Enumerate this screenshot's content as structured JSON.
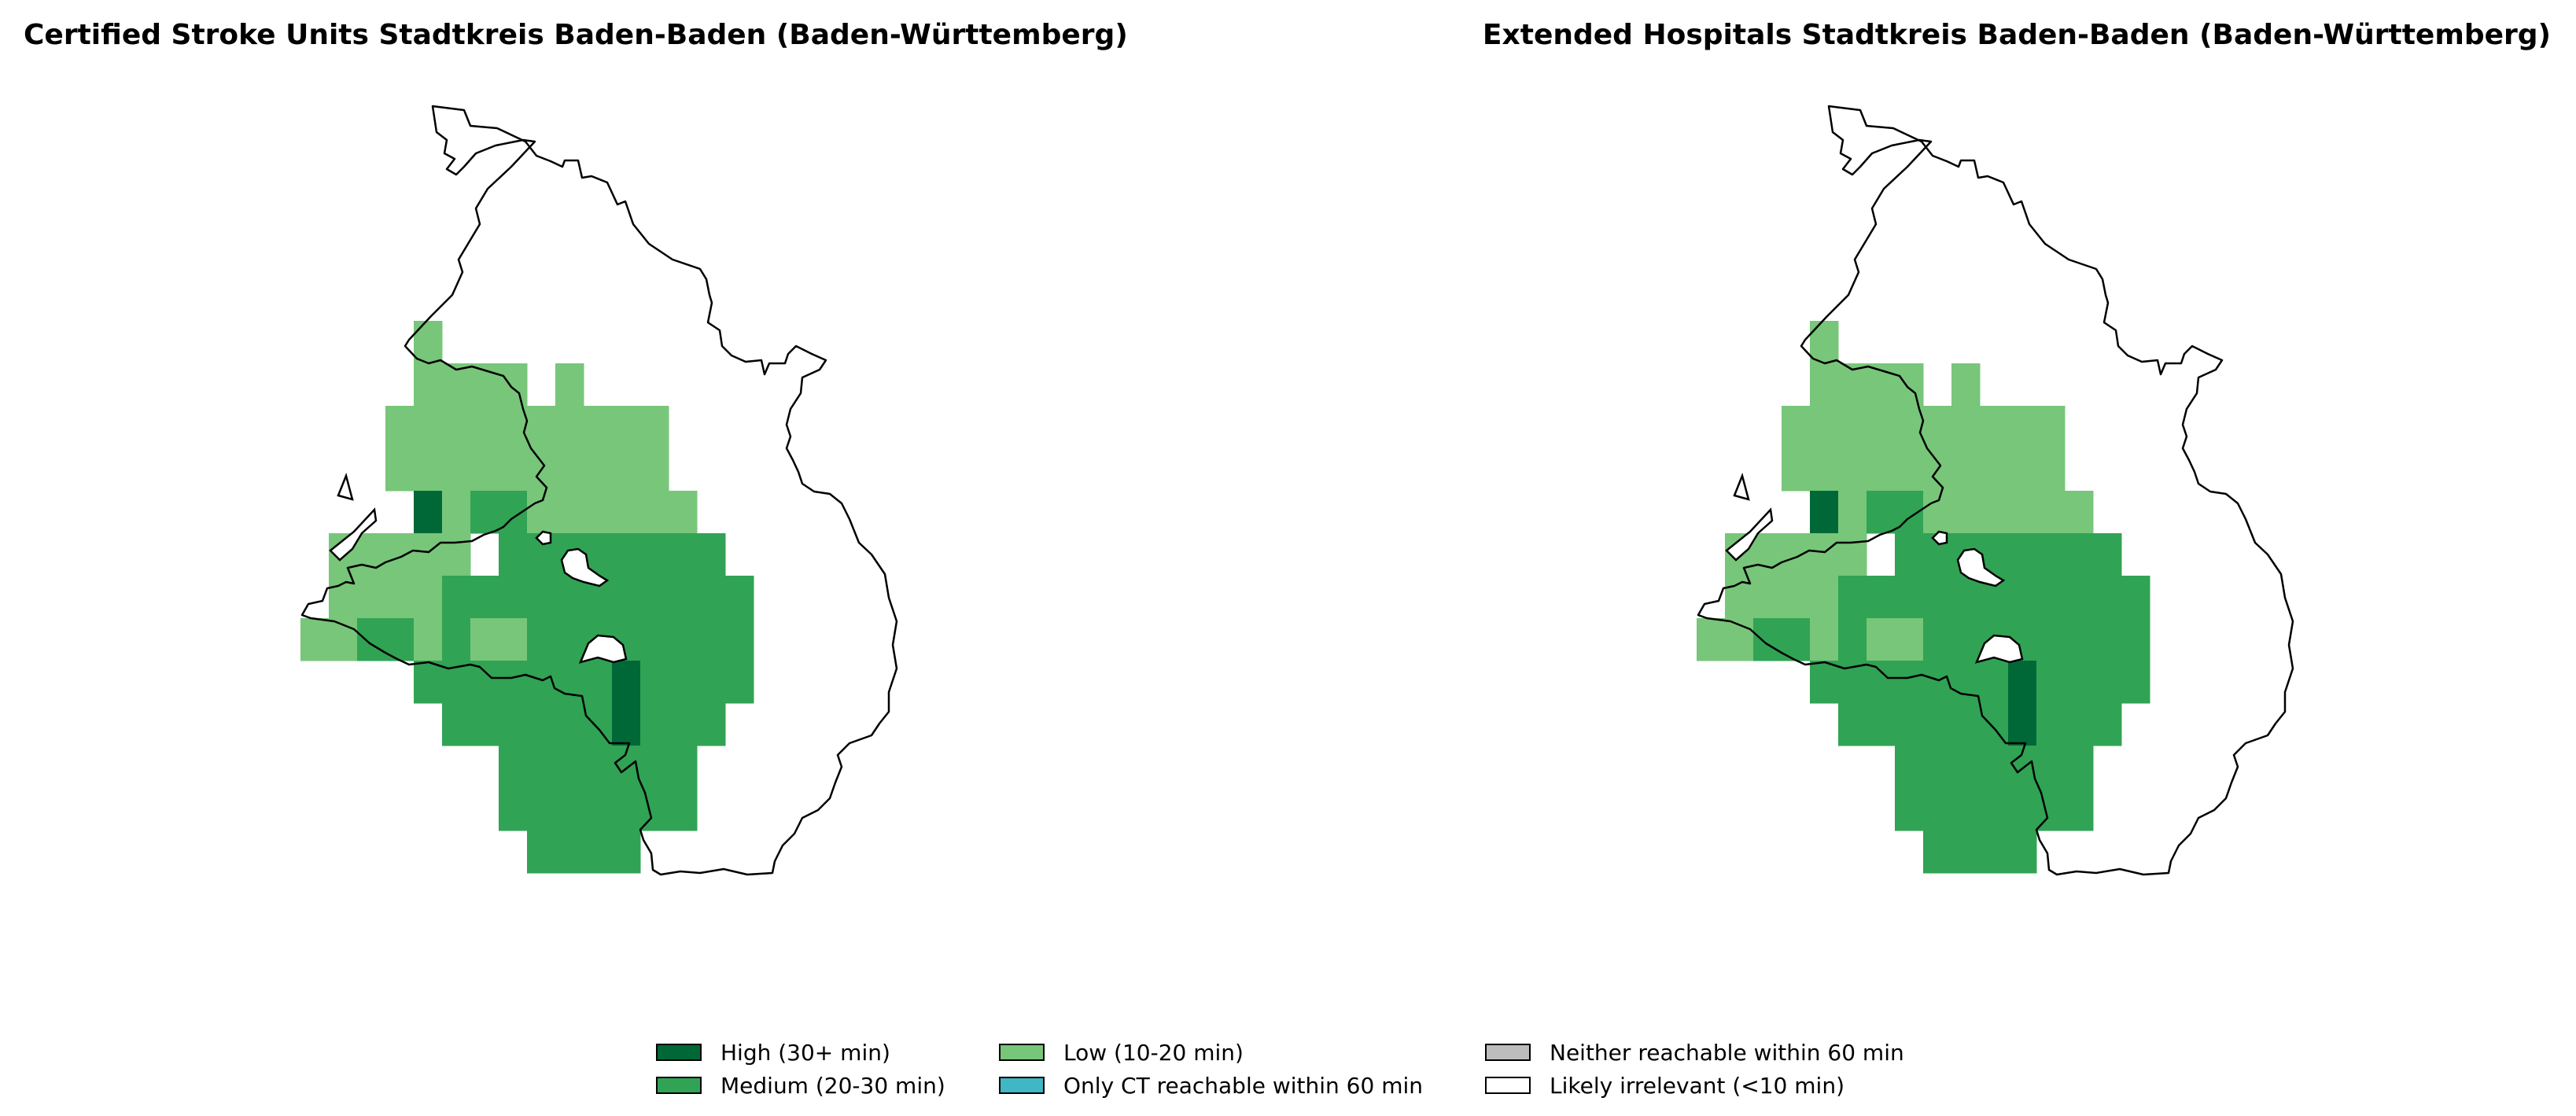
{
  "panels": [
    {
      "title": "Certified Stroke Units Stadtkreis Baden-Baden (Baden-Württemberg)"
    },
    {
      "title": "Extended Hospitals Stadtkreis Baden-Baden (Baden-Württemberg)"
    }
  ],
  "legend": [
    {
      "label": "High (30+ min)",
      "color": "#006837"
    },
    {
      "label": "Medium (20-30 min)",
      "color": "#31a354"
    },
    {
      "label": "Low (10-20 min)",
      "color": "#78c679"
    },
    {
      "label": "Only CT reachable within 60 min",
      "color": "#41b6c4"
    },
    {
      "label": "Neither reachable within 60 min",
      "color": "#bdbdbd"
    },
    {
      "label": "Likely irrelevant (<10 min)",
      "color": "#ffffff"
    }
  ],
  "colors": {
    "high": "#006837",
    "medium": "#31a354",
    "low": "#78c679",
    "boundary": "#000000"
  }
}
